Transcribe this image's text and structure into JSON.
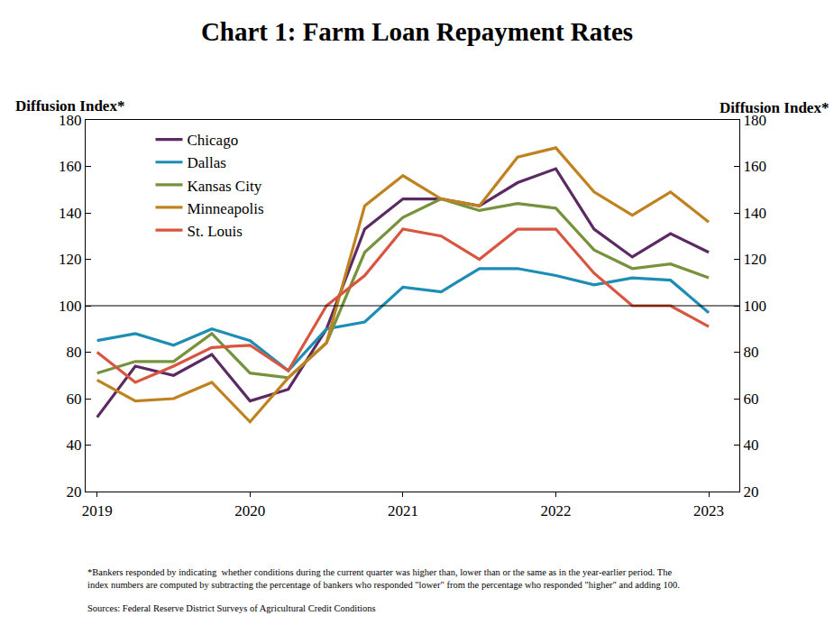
{
  "chart_data": {
    "type": "line",
    "title": "Chart 1: Farm Loan Repayment Rates",
    "y_label": "Diffusion Index*",
    "y2_label": "Diffusion Index*",
    "footnote": [
      "*Bankers responded by indicating  whether conditions during the current quarter was higher than, lower than or the same as in the year-earlier period. The",
      "index numbers are computed by subtracting the percentage of bankers who responded \"lower\" from the percentage who responded \"higher\" and adding 100."
    ],
    "source": "Sources: Federal Reserve District Surveys of Agricultural Credit Conditions",
    "categories": [
      "2019",
      null,
      null,
      null,
      "2020",
      null,
      null,
      null,
      "2021",
      null,
      null,
      null,
      "2022",
      null,
      null,
      null,
      "2023"
    ],
    "series": [
      {
        "name": "Chicago",
        "color": "#5c2a63",
        "values": [
          52,
          74,
          70,
          79,
          59,
          64,
          90,
          133,
          146,
          146,
          143,
          153,
          159,
          133,
          121,
          131,
          123
        ]
      },
      {
        "name": "Dallas",
        "color": "#1e8db5",
        "values": [
          85,
          88,
          83,
          90,
          85,
          72,
          90,
          93,
          108,
          106,
          116,
          116,
          113,
          109,
          112,
          111,
          97
        ]
      },
      {
        "name": "Kansas City",
        "color": "#76923c",
        "values": [
          71,
          76,
          76,
          88,
          71,
          69,
          84,
          123,
          138,
          146,
          141,
          144,
          142,
          124,
          116,
          118,
          112
        ]
      },
      {
        "name": "Minneapolis",
        "color": "#c0821f",
        "values": [
          68,
          59,
          60,
          67,
          50,
          69,
          84,
          143,
          156,
          146,
          143,
          164,
          168,
          149,
          139,
          149,
          136
        ]
      },
      {
        "name": "St. Louis",
        "color": "#d8553f",
        "values": [
          80,
          67,
          74,
          82,
          83,
          72,
          100,
          113,
          133,
          130,
          120,
          133,
          133,
          114,
          100,
          100,
          91
        ]
      }
    ],
    "hline": 100,
    "ylim": [
      20,
      180
    ],
    "yticks": [
      20,
      40,
      60,
      80,
      100,
      120,
      140,
      160,
      180
    ],
    "y2lim": [
      20,
      180
    ],
    "y2ticks": [
      20,
      40,
      60,
      80,
      100,
      120,
      140,
      160,
      180
    ],
    "grid": false,
    "legend": "top-left"
  }
}
